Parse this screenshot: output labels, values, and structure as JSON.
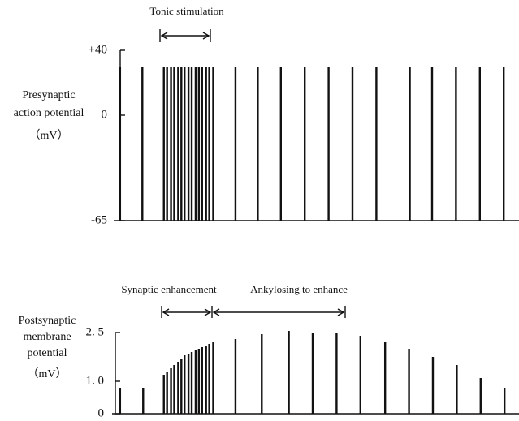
{
  "chart_data": [
    {
      "type": "stem",
      "y_label": [
        "Presynaptic",
        "action  potential",
        "（mV）"
      ],
      "annotations": [
        "Tonic stimulation"
      ],
      "xlim": [
        0,
        500
      ],
      "ylim": [
        -65,
        40
      ],
      "yticks": [
        {
          "value": 40,
          "label": "+40"
        },
        0,
        -65
      ],
      "color": "#111111",
      "x": [
        8,
        36,
        63,
        67,
        72,
        76,
        81,
        85,
        89,
        94,
        98,
        103,
        107,
        111,
        116,
        120,
        125,
        153,
        181,
        210,
        240,
        270,
        300,
        330,
        372,
        400,
        430,
        460,
        490
      ],
      "values": [
        30,
        30,
        30,
        30,
        30,
        30,
        30,
        30,
        30,
        30,
        30,
        30,
        30,
        30,
        30,
        30,
        30,
        30,
        30,
        30,
        30,
        30,
        30,
        30,
        30,
        30,
        30,
        30,
        30
      ]
    },
    {
      "type": "stem",
      "y_label": [
        "Postsynaptic",
        "membrane",
        "potential",
        "（mV）"
      ],
      "annotations": [
        "Synaptic enhancement",
        "Ankylosing to enhance"
      ],
      "xlim": [
        0,
        500
      ],
      "ylim": [
        0,
        2.5
      ],
      "yticks": [
        {
          "value": 2.5,
          "label": "2. 5"
        },
        {
          "value": 1,
          "label": "1. 0"
        },
        0
      ],
      "color": "#111111",
      "x": [
        8,
        37,
        63,
        67,
        72,
        76,
        81,
        85,
        89,
        94,
        98,
        103,
        107,
        111,
        116,
        120,
        125,
        153,
        186,
        220,
        250,
        280,
        310,
        341,
        371,
        401,
        431,
        461,
        491
      ],
      "values": [
        0.8,
        0.8,
        1.2,
        1.3,
        1.4,
        1.5,
        1.6,
        1.7,
        1.8,
        1.85,
        1.9,
        1.95,
        2.0,
        2.05,
        2.1,
        2.15,
        2.2,
        2.3,
        2.45,
        2.55,
        2.5,
        2.5,
        2.4,
        2.2,
        2.0,
        1.75,
        1.5,
        1.1,
        0.8
      ]
    }
  ]
}
